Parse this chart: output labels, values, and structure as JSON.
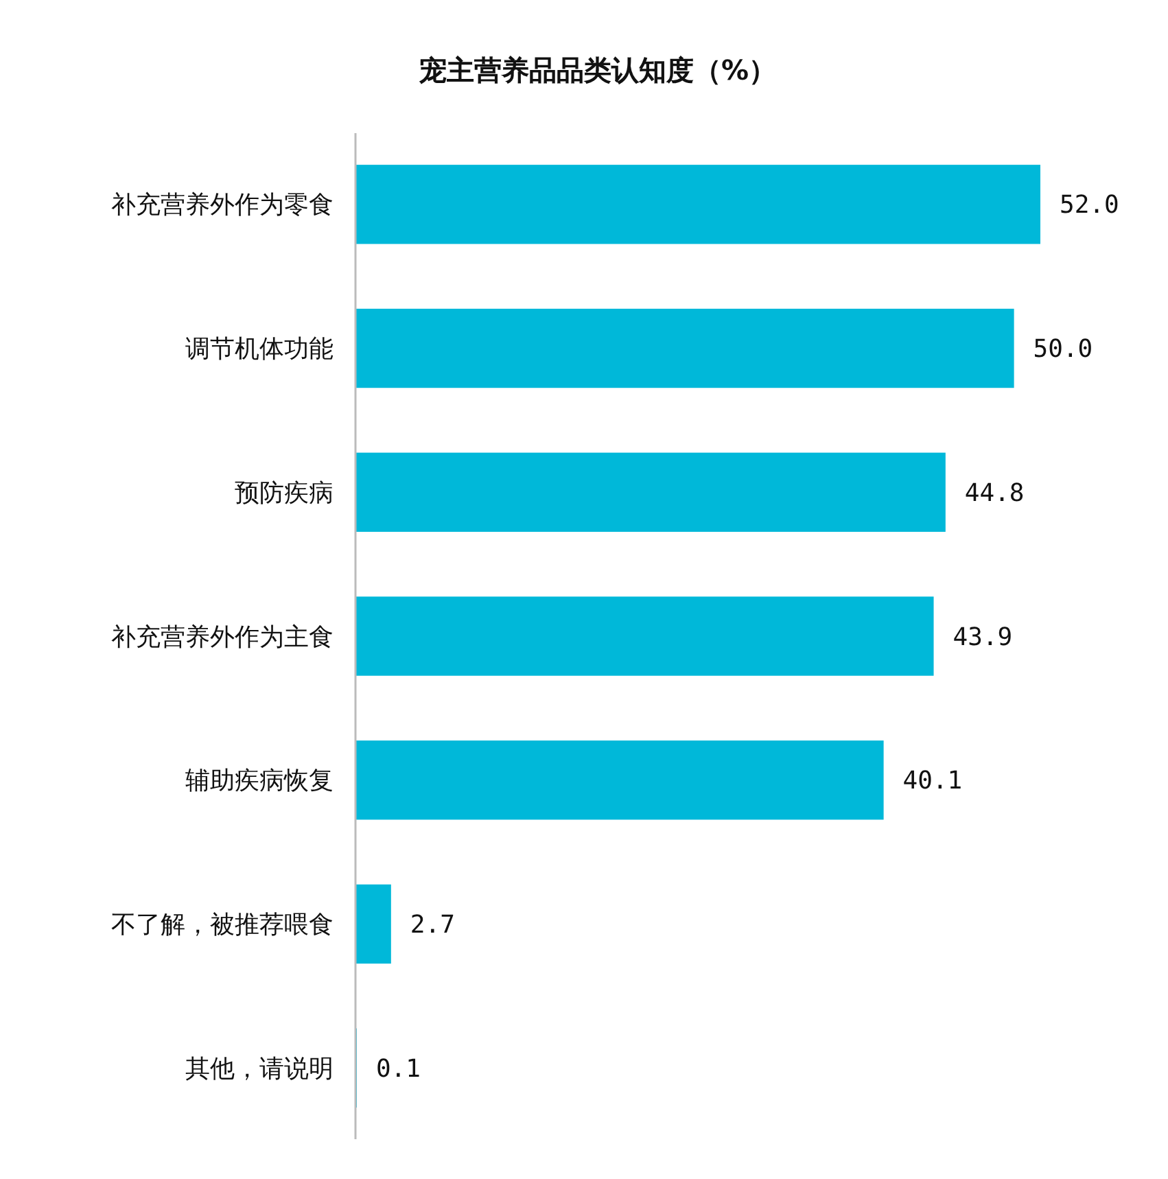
{
  "chart_data": {
    "type": "bar",
    "orientation": "horizontal",
    "title": "宠主营养品品类认知度（%）",
    "categories": [
      "补充营养外作为零食",
      "调节机体功能",
      "预防疾病",
      "补充营养外作为主食",
      "辅助疾病恢复",
      "不了解，被推荐喂食",
      "其他，请说明"
    ],
    "values": [
      52.0,
      50.0,
      44.8,
      43.9,
      40.1,
      2.7,
      0.1
    ],
    "value_labels": [
      "52.0",
      "50.0",
      "44.8",
      "43.9",
      "40.1",
      "2.7",
      "0.1"
    ],
    "color": "#00b8d9"
  }
}
